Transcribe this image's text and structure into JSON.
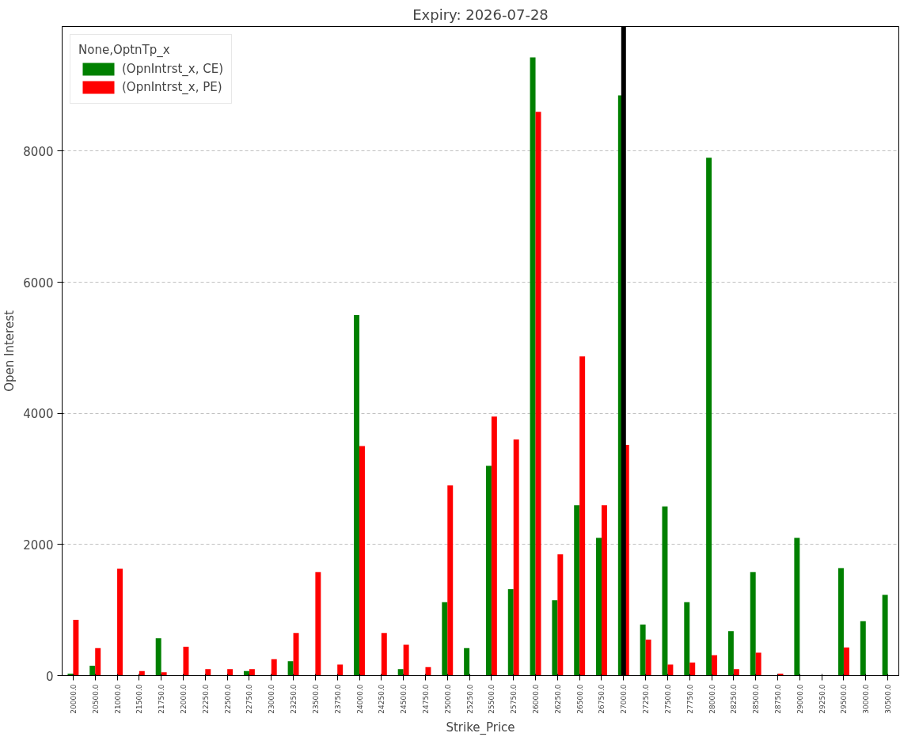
{
  "chart_data": {
    "type": "bar",
    "title": "Expiry: 2026-07-28",
    "xlabel": "Strike_Price",
    "ylabel": "Open Interest",
    "legend_title": "None,OptnTp_x",
    "categories": [
      "20000.0",
      "20500.0",
      "21000.0",
      "21500.0",
      "21750.0",
      "22000.0",
      "22250.0",
      "22500.0",
      "22750.0",
      "23000.0",
      "23250.0",
      "23500.0",
      "23750.0",
      "24000.0",
      "24250.0",
      "24500.0",
      "24750.0",
      "25000.0",
      "25250.0",
      "25500.0",
      "25750.0",
      "26000.0",
      "26250.0",
      "26500.0",
      "26750.0",
      "27000.0",
      "27250.0",
      "27500.0",
      "27750.0",
      "28000.0",
      "28250.0",
      "28500.0",
      "28750.0",
      "29000.0",
      "29250.0",
      "29500.0",
      "30000.0",
      "30500.0"
    ],
    "series": [
      {
        "name": "(OpnIntrst_x, CE)",
        "color": "#008000",
        "values": [
          30,
          150,
          0,
          0,
          570,
          0,
          0,
          0,
          70,
          0,
          220,
          0,
          0,
          5500,
          0,
          100,
          0,
          1120,
          420,
          3200,
          1320,
          9430,
          1150,
          2600,
          2100,
          8850,
          780,
          2580,
          1120,
          7900,
          680,
          1580,
          0,
          2100,
          0,
          1640,
          830,
          1230
        ]
      },
      {
        "name": "(OpnIntrst_x, PE)",
        "color": "#ff0000",
        "values": [
          850,
          420,
          1630,
          70,
          50,
          440,
          100,
          100,
          100,
          250,
          650,
          1580,
          170,
          3500,
          650,
          470,
          130,
          2900,
          0,
          3950,
          3600,
          8600,
          1850,
          4870,
          2600,
          3520,
          550,
          170,
          200,
          310,
          100,
          350,
          30,
          0,
          0,
          430,
          0,
          0
        ]
      }
    ],
    "ylim": [
      0,
      9900
    ],
    "yticks": [
      0,
      2000,
      4000,
      6000,
      8000
    ],
    "grid": "y",
    "legend": "top left",
    "ref_lines": [
      {
        "axis": "x",
        "value": "27000.0",
        "color": "#000000"
      }
    ]
  }
}
